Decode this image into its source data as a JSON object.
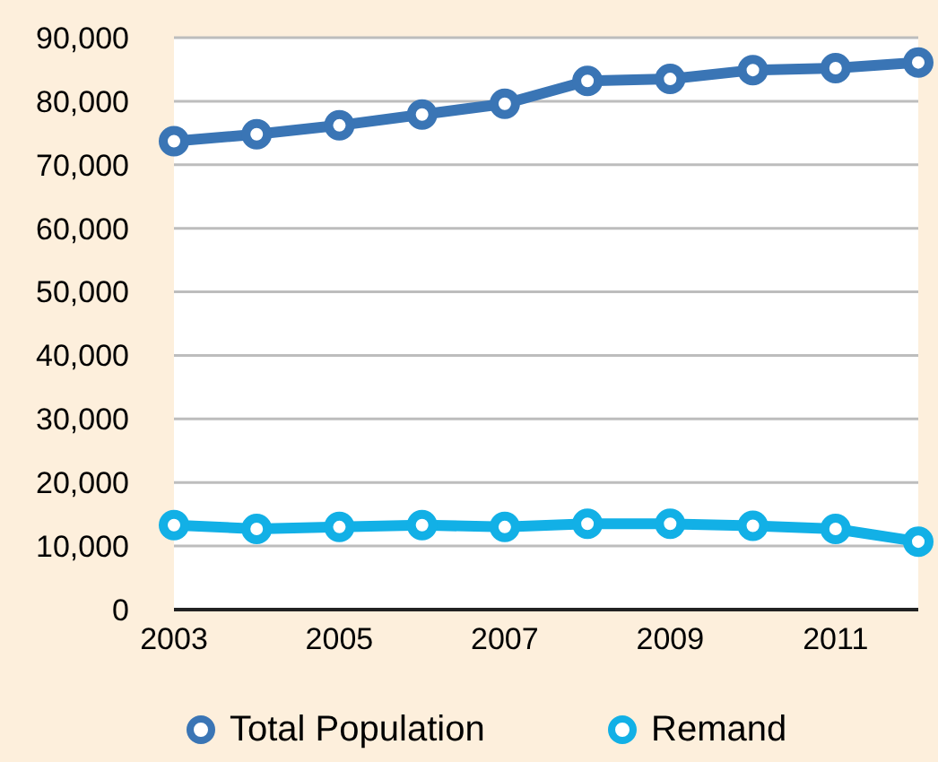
{
  "chart_data": {
    "type": "line",
    "x": [
      2003,
      2004,
      2005,
      2006,
      2007,
      2008,
      2009,
      2010,
      2011,
      2012
    ],
    "series": [
      {
        "name": "Total Population",
        "color": "#3a75b5",
        "values": [
          73700,
          74800,
          76200,
          77900,
          79600,
          83200,
          83500,
          84900,
          85200,
          86100
        ]
      },
      {
        "name": "Remand",
        "color": "#12b0e6",
        "values": [
          13300,
          12700,
          13000,
          13300,
          13000,
          13500,
          13500,
          13200,
          12700,
          10700
        ]
      }
    ],
    "xlim": [
      2003,
      2012
    ],
    "xticks": [
      2003,
      2005,
      2007,
      2009,
      2011
    ],
    "ylim": [
      0,
      90000
    ],
    "yticks": [
      {
        "value": 0,
        "label": "0"
      },
      {
        "value": 10000,
        "label": "10,000"
      },
      {
        "value": 20000,
        "label": "20,000"
      },
      {
        "value": 30000,
        "label": "30,000"
      },
      {
        "value": 40000,
        "label": "40,000"
      },
      {
        "value": 50000,
        "label": "50,000"
      },
      {
        "value": 60000,
        "label": "60,000"
      },
      {
        "value": 70000,
        "label": "70,000"
      },
      {
        "value": 80000,
        "label": "80,000"
      },
      {
        "value": 90000,
        "label": "90,000"
      }
    ],
    "grid": "y",
    "legend": "bottom",
    "marker": "circle",
    "line_style": "solid"
  }
}
